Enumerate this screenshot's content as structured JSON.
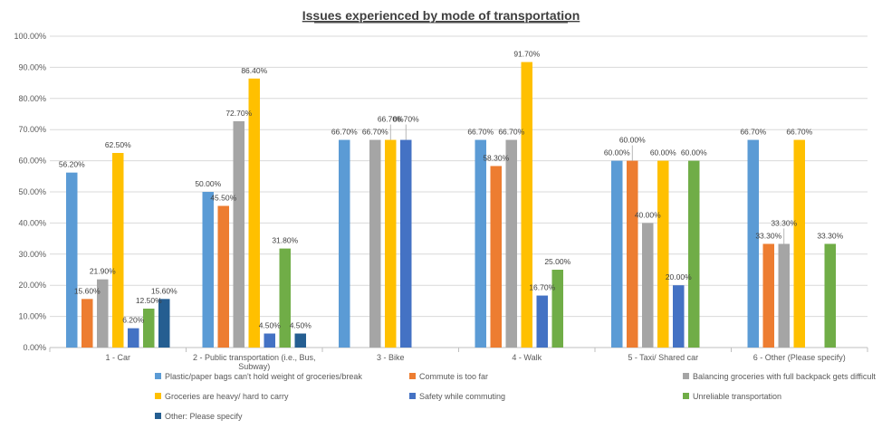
{
  "chart_data": {
    "type": "bar",
    "title": "Issues experienced by mode of transportation",
    "xlabel": "",
    "ylabel": "",
    "ylim": [
      0,
      100
    ],
    "yticks": [
      "0.00%",
      "10.00%",
      "20.00%",
      "30.00%",
      "40.00%",
      "50.00%",
      "60.00%",
      "70.00%",
      "80.00%",
      "90.00%",
      "100.00%"
    ],
    "grid": true,
    "legend_position": "bottom",
    "categories": [
      [
        "1 - Car"
      ],
      [
        "2 - Public transportation (i.e., Bus,",
        "Subway)"
      ],
      [
        "3 - Bike"
      ],
      [
        "4 - Walk"
      ],
      [
        "5 - Taxi/ Shared car"
      ],
      [
        "6 - Other (Please specify)"
      ]
    ],
    "series": [
      {
        "name": "Plastic/paper bags can't hold weight of groceries/break",
        "color": "#5B9BD5",
        "values": [
          56.2,
          50.0,
          66.7,
          66.7,
          60.0,
          66.7
        ]
      },
      {
        "name": "Commute is too far",
        "color": "#ED7D31",
        "values": [
          15.6,
          45.5,
          null,
          58.3,
          60.0,
          33.3
        ]
      },
      {
        "name": "Balancing groceries with full backpack gets difficult",
        "color": "#A5A5A5",
        "values": [
          21.9,
          72.7,
          66.7,
          66.7,
          40.0,
          33.3
        ]
      },
      {
        "name": "Groceries are heavy/ hard to carry",
        "color": "#FFC000",
        "values": [
          62.5,
          86.4,
          66.7,
          91.7,
          60.0,
          66.7
        ]
      },
      {
        "name": "Safety while commuting",
        "color": "#4472C4",
        "values": [
          6.2,
          4.5,
          66.7,
          16.7,
          20.0,
          null
        ]
      },
      {
        "name": "Unreliable transportation",
        "color": "#70AD47",
        "values": [
          12.5,
          31.8,
          null,
          25.0,
          60.0,
          33.3
        ]
      },
      {
        "name": "Other: Please specify",
        "color": "#255E91",
        "values": [
          15.6,
          4.5,
          null,
          null,
          null,
          null
        ]
      }
    ]
  }
}
